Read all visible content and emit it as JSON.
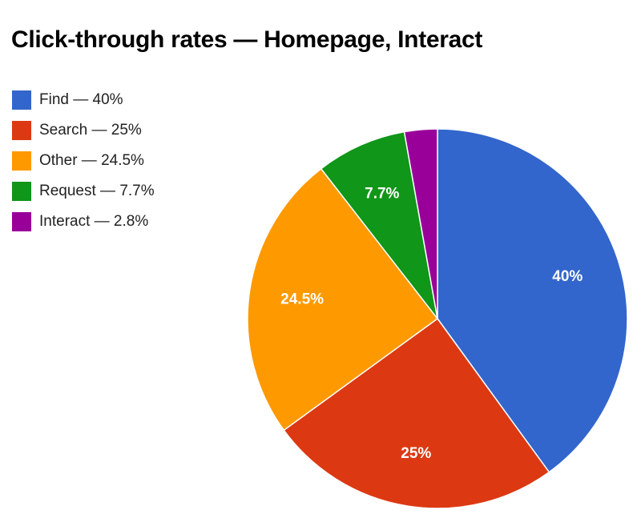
{
  "chart_data": {
    "type": "pie",
    "title": "Click-through rates — Homepage, Interact",
    "legend_position": "top-left",
    "start": "12 o'clock, clockwise",
    "slices": [
      {
        "name": "Find",
        "value": 40,
        "legend_label": "Find — 40%",
        "slice_label": "40%",
        "color": "#3366cc"
      },
      {
        "name": "Search",
        "value": 25,
        "legend_label": "Search — 25%",
        "slice_label": "25%",
        "color": "#dc3912"
      },
      {
        "name": "Other",
        "value": 24.5,
        "legend_label": "Other — 24.5%",
        "slice_label": "24.5%",
        "color": "#ff9900"
      },
      {
        "name": "Request",
        "value": 7.7,
        "legend_label": "Request — 7.7%",
        "slice_label": "7.7%",
        "color": "#109618"
      },
      {
        "name": "Interact",
        "value": 2.8,
        "legend_label": "Interact — 2.8%",
        "slice_label": "",
        "color": "#990099"
      }
    ]
  }
}
